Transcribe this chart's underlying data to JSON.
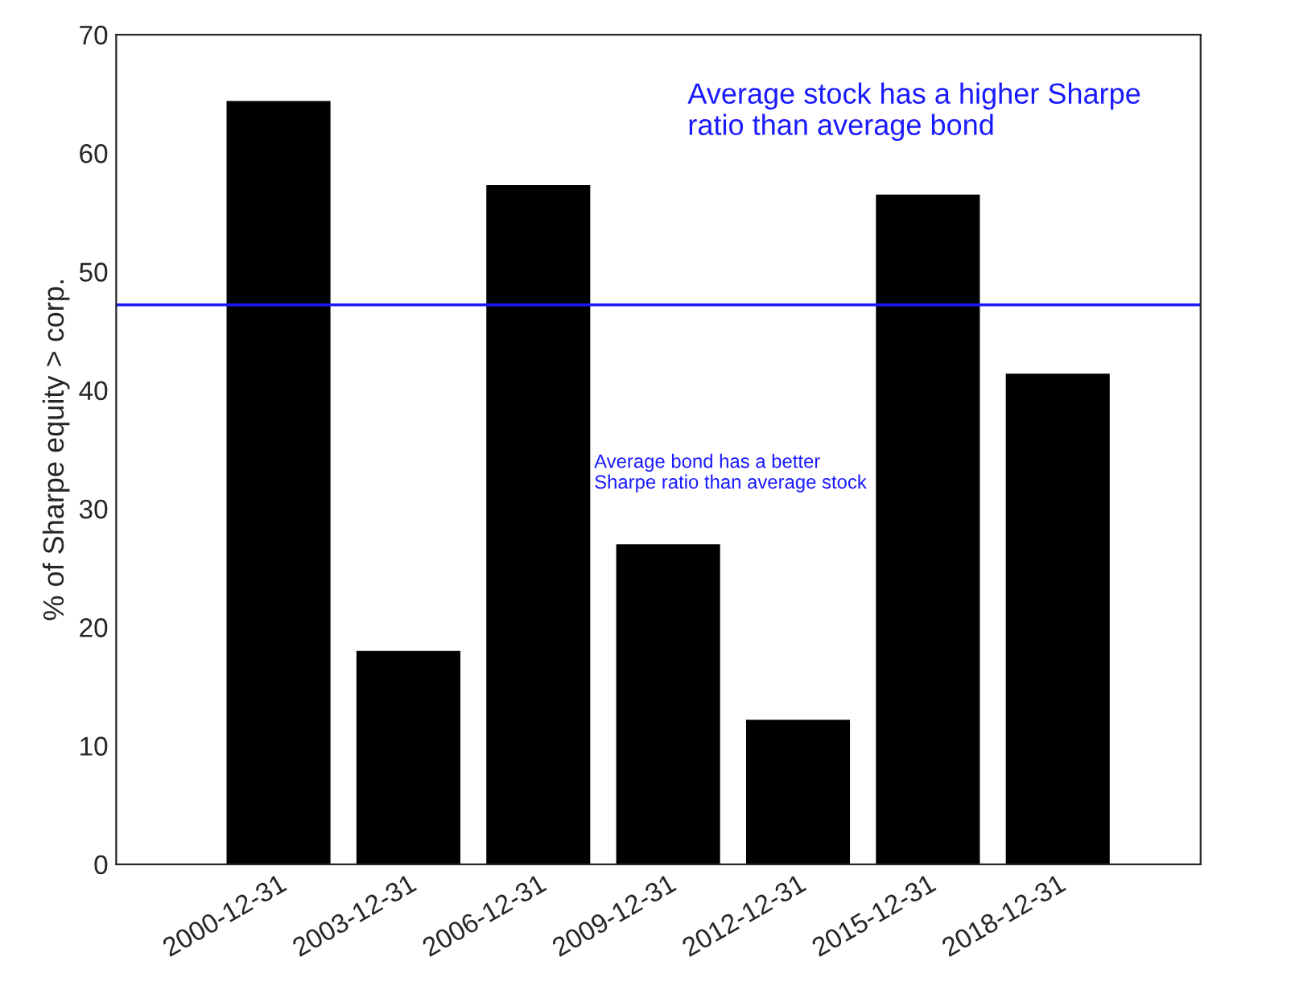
{
  "chart_data": {
    "type": "bar",
    "ylabel": "% of Sharpe equity > corp.",
    "categories": [
      "2000-12-31",
      "2003-12-31",
      "2006-12-31",
      "2009-12-31",
      "2012-12-31",
      "2015-12-31",
      "2018-12-31"
    ],
    "values": [
      64.4,
      18.0,
      57.3,
      27.0,
      12.2,
      56.5,
      41.4
    ],
    "color": "#000000",
    "ylim": [
      0,
      70
    ],
    "yticks": [
      0,
      10,
      20,
      30,
      40,
      50,
      60,
      70
    ],
    "grid": false,
    "ref_lines": [
      {
        "axis": "y",
        "value": 47.2,
        "color": "#1a1aff"
      }
    ],
    "annotations": [
      "Average stock has a higher Sharpe\nratio than average bond",
      "Average bond has a better\nSharpe ratio than average stock"
    ]
  }
}
